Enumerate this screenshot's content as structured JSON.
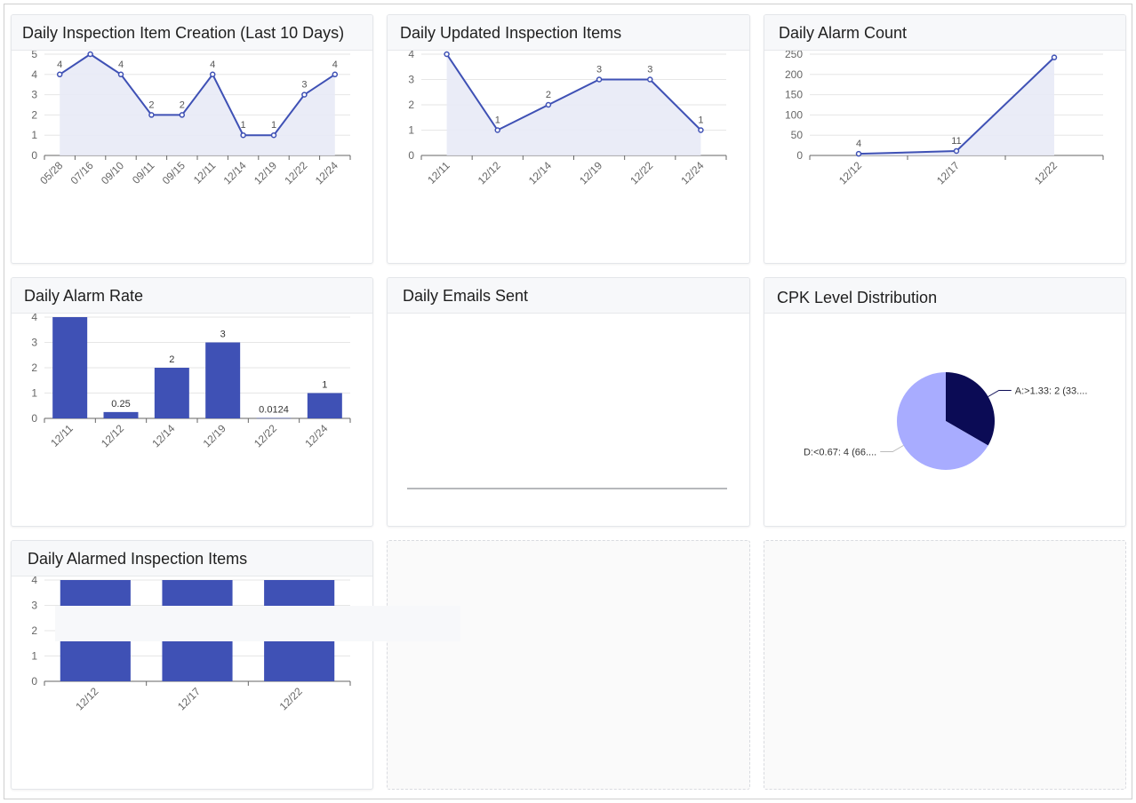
{
  "panels": {
    "creation": {
      "title": "Daily Inspection Item Creation (Last 10 Days)"
    },
    "updated": {
      "title": "Daily Updated Inspection Items"
    },
    "alarm_count": {
      "title": "Daily Alarm Count"
    },
    "alarm_rate": {
      "title": "Daily Alarm Rate"
    },
    "emails": {
      "title": "Daily Emails Sent"
    },
    "cpk": {
      "title": "CPK Level Distribution"
    },
    "alarmed_items": {
      "title": "Daily Alarmed Inspection Items"
    }
  },
  "colors": {
    "line": "#3f51b5",
    "area": "#e8eaf6",
    "bar": "#3f51b5",
    "pie_a": "#0b0b55",
    "pie_d": "#a8acff",
    "grid": "#e6e6e6",
    "axis": "#666666"
  },
  "chart_data": [
    {
      "id": "creation",
      "type": "area",
      "title": "Daily Inspection Item Creation (Last 10 Days)",
      "categories": [
        "05/28",
        "07/16",
        "09/10",
        "09/11",
        "09/15",
        "12/11",
        "12/14",
        "12/19",
        "12/22",
        "12/24"
      ],
      "values": [
        4,
        5,
        4,
        2,
        2,
        4,
        1,
        1,
        3,
        4
      ],
      "yticks": [
        0,
        1,
        2,
        3,
        4,
        5
      ],
      "ylim": [
        0,
        5
      ]
    },
    {
      "id": "updated",
      "type": "area",
      "title": "Daily Updated Inspection Items",
      "categories": [
        "12/11",
        "12/12",
        "12/14",
        "12/19",
        "12/22",
        "12/24"
      ],
      "values": [
        4,
        1,
        2,
        3,
        3,
        1
      ],
      "yticks": [
        0,
        1,
        2,
        3,
        4
      ],
      "ylim": [
        0,
        4
      ]
    },
    {
      "id": "alarm_count",
      "type": "area",
      "title": "Daily Alarm Count",
      "categories": [
        "12/12",
        "12/17",
        "12/22"
      ],
      "values": [
        4,
        11,
        242
      ],
      "yticks": [
        0,
        50,
        100,
        150,
        200,
        250
      ],
      "ylim": [
        0,
        250
      ]
    },
    {
      "id": "alarm_rate",
      "type": "bar",
      "title": "Daily Alarm Rate",
      "categories": [
        "12/11",
        "12/12",
        "12/14",
        "12/19",
        "12/22",
        "12/24"
      ],
      "values": [
        4,
        0.25,
        2,
        3,
        0.0124,
        1
      ],
      "yticks": [
        0,
        1,
        2,
        3,
        4
      ],
      "ylim": [
        0,
        4
      ]
    },
    {
      "id": "emails",
      "type": "line",
      "title": "Daily Emails Sent",
      "categories": [],
      "values": []
    },
    {
      "id": "cpk",
      "type": "pie",
      "title": "CPK Level Distribution",
      "slices": [
        {
          "name": "A:>1.33",
          "value": 2,
          "label": "A:>1.33: 2 (33...."
        },
        {
          "name": "D:<0.67",
          "value": 4,
          "label": "D:<0.67: 4 (66...."
        }
      ]
    },
    {
      "id": "alarmed_items",
      "type": "bar",
      "title": "Daily Alarmed Inspection Items",
      "categories": [
        "12/12",
        "12/17",
        "12/22"
      ],
      "values": [
        4,
        4,
        4
      ],
      "yticks": [
        0,
        1,
        2,
        3,
        4
      ],
      "ylim": [
        0,
        4
      ]
    }
  ]
}
